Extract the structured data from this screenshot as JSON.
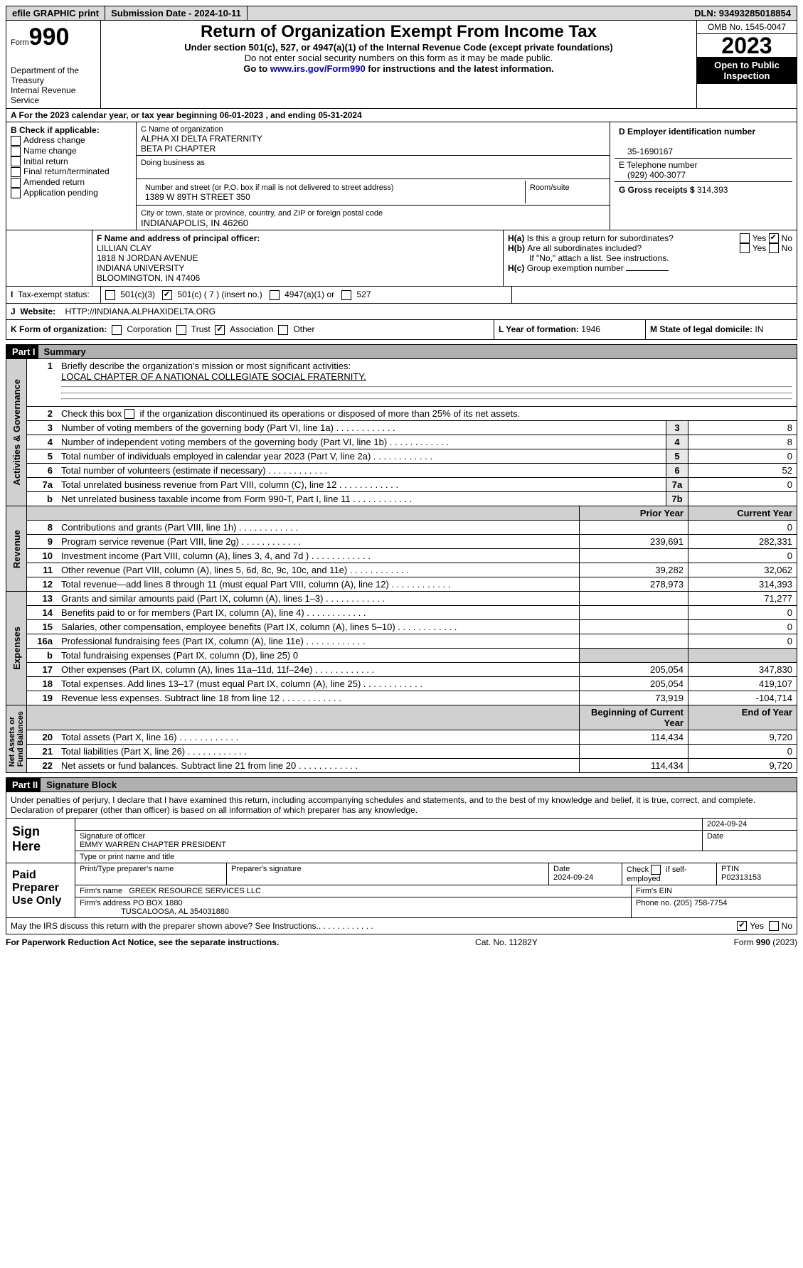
{
  "topbar": {
    "efile": "efile GRAPHIC print",
    "submission": "Submission Date - 2024-10-11",
    "dln_label": "DLN:",
    "dln": "93493285018854"
  },
  "header": {
    "form_word": "Form",
    "form_num": "990",
    "title": "Return of Organization Exempt From Income Tax",
    "subtitle": "Under section 501(c), 527, or 4947(a)(1) of the Internal Revenue Code (except private foundations)",
    "warn": "Do not enter social security numbers on this form as it may be made public.",
    "goto_pre": "Go to ",
    "goto_link": "www.irs.gov/Form990",
    "goto_post": " for instructions and the latest information.",
    "dept": "Department of the Treasury\nInternal Revenue Service",
    "omb": "OMB No. 1545-0047",
    "year": "2023",
    "inspect": "Open to Public Inspection"
  },
  "a": {
    "text": "A For the 2023 calendar year, or tax year beginning 06-01-2023   , and ending 05-31-2024"
  },
  "b": {
    "label": "B Check if applicable:",
    "items": [
      "Address change",
      "Name change",
      "Initial return",
      "Final return/terminated",
      "Amended return",
      "Application pending"
    ]
  },
  "c": {
    "name_lbl": "C Name of organization",
    "name1": "ALPHA XI DELTA FRATERNITY",
    "name2": "BETA PI CHAPTER",
    "dba_lbl": "Doing business as",
    "street_lbl": "Number and street (or P.O. box if mail is not delivered to street address)",
    "room_lbl": "Room/suite",
    "street": "1389 W 89TH STREET 350",
    "city_lbl": "City or town, state or province, country, and ZIP or foreign postal code",
    "city": "INDIANAPOLIS, IN  46260"
  },
  "d": {
    "lbl": "D Employer identification number",
    "val": "35-1690167"
  },
  "e": {
    "lbl": "E Telephone number",
    "val": "(929) 400-3077"
  },
  "g": {
    "lbl": "G Gross receipts $",
    "val": "314,393"
  },
  "f": {
    "lbl": "F  Name and address of principal officer:",
    "l1": "LILLIAN CLAY",
    "l2": "1818 N JORDAN AVENUE",
    "l3": "INDIANA UNIVERSITY",
    "l4": "BLOOMINGTON, IN  47406"
  },
  "h": {
    "a": "Is this a group return for subordinates?",
    "b": "Are all subordinates included?",
    "b2": "If \"No,\" attach a list. See instructions.",
    "c": "Group exemption number",
    "yes": "Yes",
    "no": "No"
  },
  "i": {
    "lbl": "Tax-exempt status:",
    "o1": "501(c)(3)",
    "o2": "501(c) ( 7 ) (insert no.)",
    "o3": "4947(a)(1) or",
    "o4": "527"
  },
  "j": {
    "lbl": "Website:",
    "val": "HTTP://INDIANA.ALPHAXIDELTA.ORG"
  },
  "k": {
    "lbl": "K Form of organization:",
    "o1": "Corporation",
    "o2": "Trust",
    "o3": "Association",
    "o4": "Other"
  },
  "l": {
    "lbl": "L Year of formation:",
    "val": "1946"
  },
  "m": {
    "lbl": "M State of legal domicile:",
    "val": "IN"
  },
  "part1": {
    "hdr": "Part I",
    "title": "Summary",
    "q1": "Briefly describe the organization's mission or most significant activities:",
    "q1a": "LOCAL CHAPTER OF A NATIONAL COLLEGIATE SOCIAL FRATERNITY.",
    "q2": "Check this box            if the organization discontinued its operations or disposed of more than 25% of its net assets.",
    "lines": [
      {
        "n": "3",
        "t": "Number of voting members of the governing body (Part VI, line 1a)",
        "box": "3",
        "v": "8"
      },
      {
        "n": "4",
        "t": "Number of independent voting members of the governing body (Part VI, line 1b)",
        "box": "4",
        "v": "8"
      },
      {
        "n": "5",
        "t": "Total number of individuals employed in calendar year 2023 (Part V, line 2a)",
        "box": "5",
        "v": "0"
      },
      {
        "n": "6",
        "t": "Total number of volunteers (estimate if necessary)",
        "box": "6",
        "v": "52"
      },
      {
        "n": "7a",
        "t": "Total unrelated business revenue from Part VIII, column (C), line 12",
        "box": "7a",
        "v": "0"
      },
      {
        "n": "b",
        "t": "Net unrelated business taxable income from Form 990-T, Part I, line 11",
        "box": "7b",
        "v": ""
      }
    ],
    "py": "Prior Year",
    "cy": "Current Year",
    "rev": [
      {
        "n": "8",
        "t": "Contributions and grants (Part VIII, line 1h)",
        "p": "",
        "c": "0"
      },
      {
        "n": "9",
        "t": "Program service revenue (Part VIII, line 2g)",
        "p": "239,691",
        "c": "282,331"
      },
      {
        "n": "10",
        "t": "Investment income (Part VIII, column (A), lines 3, 4, and 7d )",
        "p": "",
        "c": "0"
      },
      {
        "n": "11",
        "t": "Other revenue (Part VIII, column (A), lines 5, 6d, 8c, 9c, 10c, and 11e)",
        "p": "39,282",
        "c": "32,062"
      },
      {
        "n": "12",
        "t": "Total revenue—add lines 8 through 11 (must equal Part VIII, column (A), line 12)",
        "p": "278,973",
        "c": "314,393"
      }
    ],
    "exp": [
      {
        "n": "13",
        "t": "Grants and similar amounts paid (Part IX, column (A), lines 1–3)",
        "p": "",
        "c": "71,277"
      },
      {
        "n": "14",
        "t": "Benefits paid to or for members (Part IX, column (A), line 4)",
        "p": "",
        "c": "0"
      },
      {
        "n": "15",
        "t": "Salaries, other compensation, employee benefits (Part IX, column (A), lines 5–10)",
        "p": "",
        "c": "0"
      },
      {
        "n": "16a",
        "t": "Professional fundraising fees (Part IX, column (A), line 11e)",
        "p": "",
        "c": "0"
      },
      {
        "n": "b",
        "t": "Total fundraising expenses (Part IX, column (D), line 25) 0",
        "p": "—",
        "c": "—"
      },
      {
        "n": "17",
        "t": "Other expenses (Part IX, column (A), lines 11a–11d, 11f–24e)",
        "p": "205,054",
        "c": "347,830"
      },
      {
        "n": "18",
        "t": "Total expenses. Add lines 13–17 (must equal Part IX, column (A), line 25)",
        "p": "205,054",
        "c": "419,107"
      },
      {
        "n": "19",
        "t": "Revenue less expenses. Subtract line 18 from line 12",
        "p": "73,919",
        "c": "-104,714"
      }
    ],
    "bcy": "Beginning of Current Year",
    "eoy": "End of Year",
    "na": [
      {
        "n": "20",
        "t": "Total assets (Part X, line 16)",
        "p": "114,434",
        "c": "9,720"
      },
      {
        "n": "21",
        "t": "Total liabilities (Part X, line 26)",
        "p": "",
        "c": "0"
      },
      {
        "n": "22",
        "t": "Net assets or fund balances. Subtract line 21 from line 20",
        "p": "114,434",
        "c": "9,720"
      }
    ],
    "vtabs": {
      "ag": "Activities & Governance",
      "rev": "Revenue",
      "exp": "Expenses",
      "na": "Net Assets or\nFund Balances"
    }
  },
  "part2": {
    "hdr": "Part II",
    "title": "Signature Block",
    "decl": "Under penalties of perjury, I declare that I have examined this return, including accompanying schedules and statements, and to the best of my knowledge and belief, it is true, correct, and complete. Declaration of preparer (other than officer) is based on all information of which preparer has any knowledge.",
    "sign_here": "Sign Here",
    "sig_lbl": "Signature of officer",
    "sig_name": "EMMY WARREN  CHAPTER PRESIDENT",
    "sig_type": "Type or print name and title",
    "date_lbl": "Date",
    "date": "2024-09-24",
    "paid": "Paid Preparer Use Only",
    "p_name_lbl": "Print/Type preparer's name",
    "p_sig_lbl": "Preparer's signature",
    "p_date": "2024-09-24",
    "p_check": "Check           if self-employed",
    "ptin_lbl": "PTIN",
    "ptin": "P02313153",
    "firm_lbl": "Firm's name",
    "firm": "GREEK RESOURCE SERVICES LLC",
    "firm_ein_lbl": "Firm's EIN",
    "firm_addr_lbl": "Firm's address",
    "firm_addr": "PO BOX 1880",
    "firm_addr2": "TUSCALOOSA, AL  354031880",
    "phone_lbl": "Phone no.",
    "phone": "(205) 758-7754",
    "discuss": "May the IRS discuss this return with the preparer shown above? See Instructions.",
    "yes": "Yes",
    "no": "No"
  },
  "footer": {
    "l": "For Paperwork Reduction Act Notice, see the separate instructions.",
    "m": "Cat. No. 11282Y",
    "r": "Form 990 (2023)"
  }
}
